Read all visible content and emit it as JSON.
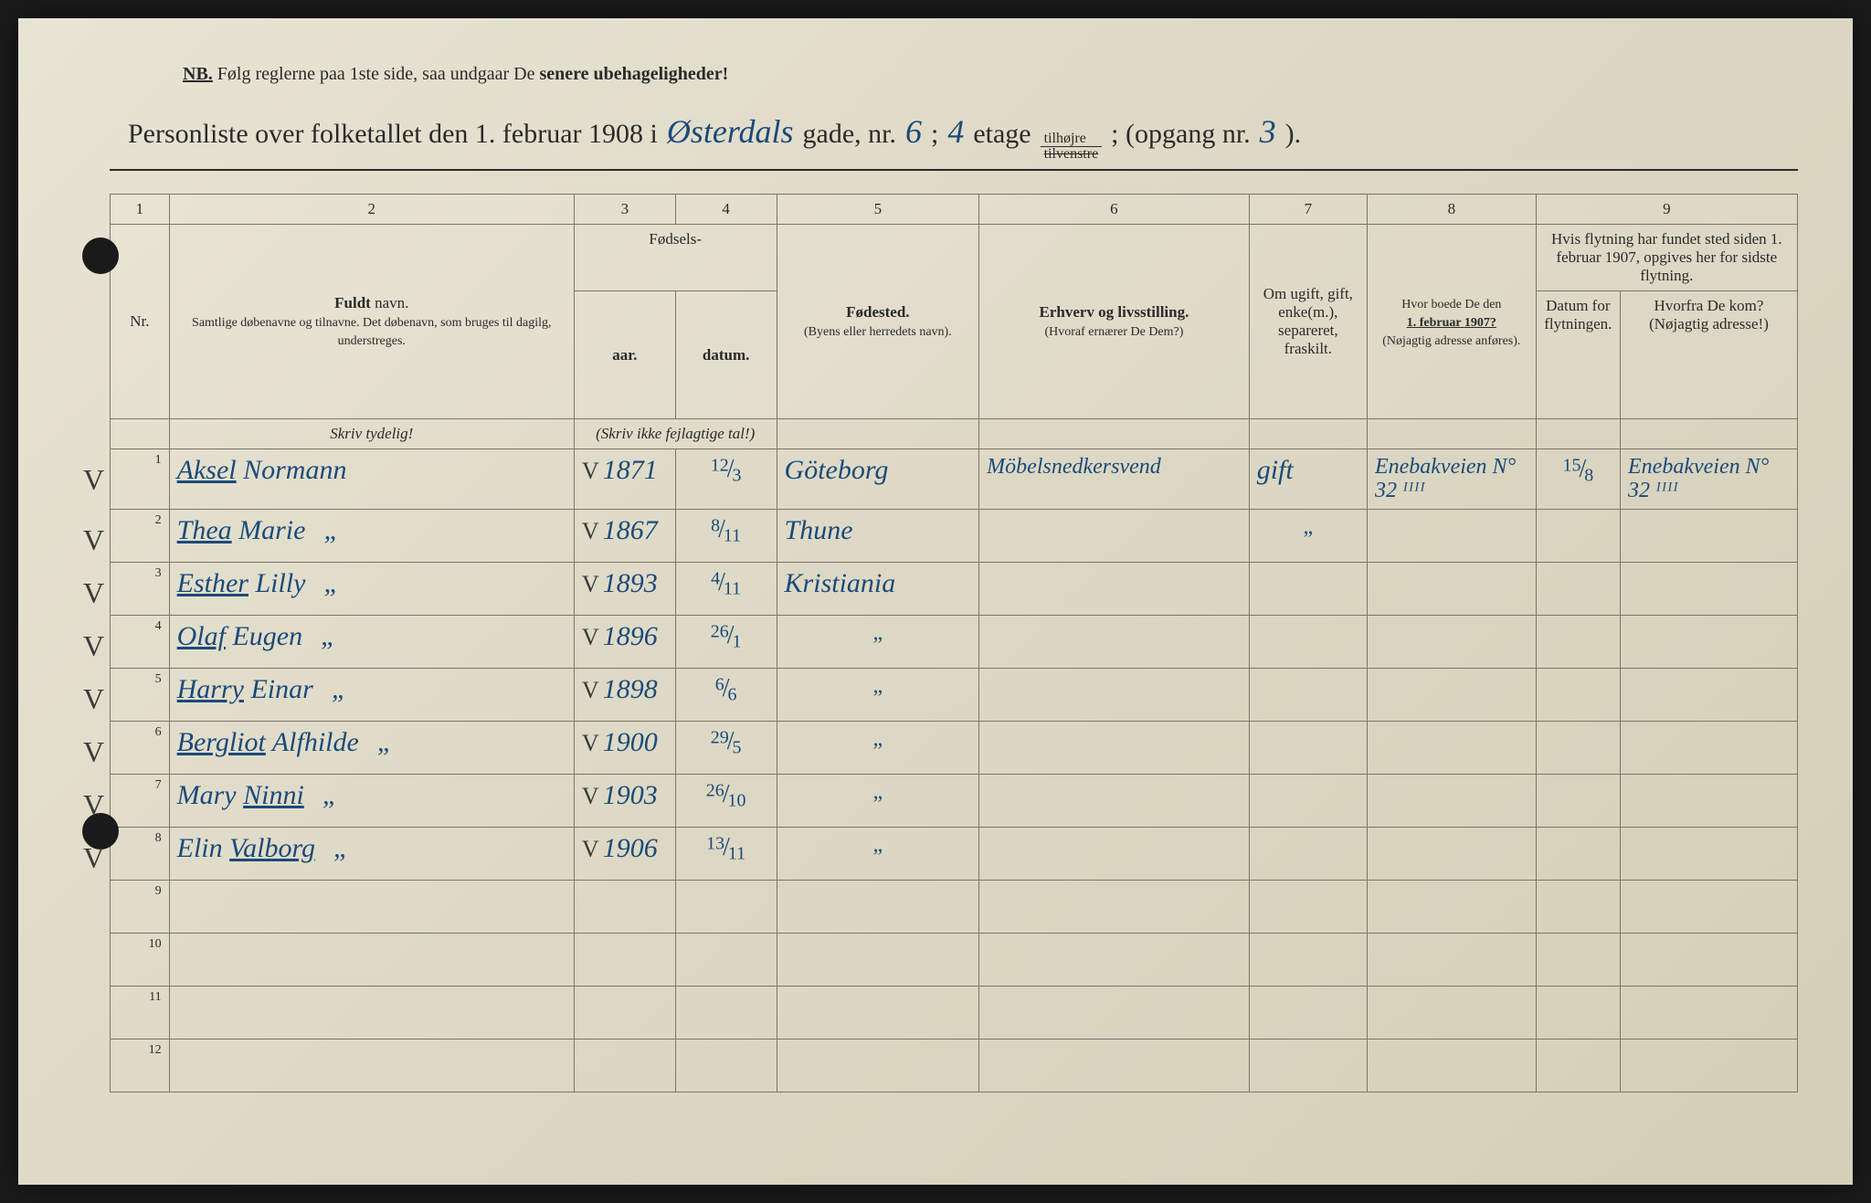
{
  "nb": {
    "prefix": "NB.",
    "text1": "Følg reglerne paa 1ste side, saa undgaar De ",
    "emphasis": "senere ubehageligheder!"
  },
  "title": {
    "t1": "Personliste over folketallet den 1. februar 1908 i",
    "street": "Østerdals",
    "t2": "gade, nr.",
    "nr": "6",
    "semi": ";",
    "floor": "4",
    "t3": "etage",
    "side_top": "tilhøjre",
    "side_bottom": "tilvenstre",
    "t4": "; (opgang nr.",
    "opgang": "3",
    "t5": ")."
  },
  "columns": {
    "nums": [
      "1",
      "2",
      "3",
      "4",
      "5",
      "6",
      "7",
      "8",
      "9"
    ],
    "nr": "Nr.",
    "name_bold": "Fuldt",
    "name_rest": " navn.",
    "name_sub": "Samtlige døbenavne og tilnavne. Det døbenavn, som bruges til dagilg, understreges.",
    "fodsels": "Fødsels-",
    "aar": "aar.",
    "datum": "datum.",
    "skriv_tal": "(Skriv ikke fejlagtige tal!)",
    "fodested": "Fødested.",
    "fodested_sub": "(Byens eller herredets navn).",
    "erhverv": "Erhverv og livsstilling.",
    "erhverv_sub": "(Hvoraf ernærer De Dem?)",
    "ugift": "Om ugift, gift, enke(m.), separeret, fraskilt.",
    "hvor1907": "Hvor boede De den",
    "hvor1907_bold": "1. februar 1907?",
    "hvor1907_sub": "(Nøjagtig adresse anføres).",
    "flyt_top": "Hvis flytning har fundet sted siden 1. februar 1907, opgives her for sidste flytning.",
    "flyt_datum": "Datum for flytningen.",
    "flyt_hvorfra1": "Hvorfra",
    "flyt_hvorfra2": " De kom?",
    "flyt_hvorfra_sub": "(Nøjagtig adresse!)",
    "skriv_tydelig": "Skriv tydelig!"
  },
  "rows": [
    {
      "nr": "1",
      "check": "V",
      "name": "Aksel Normann",
      "name_underlined": "Aksel",
      "year": "1871",
      "year_check": "V",
      "date_num": "12",
      "date_den": "3",
      "birthplace": "Göteborg",
      "occupation": "Möbelsnedkersvend",
      "marital": "gift",
      "addr1907": "Enebakveien N° 32 ᴵᴵᴵᴵ",
      "move_date_num": "15",
      "move_date_den": "8",
      "move_from": "Enebakveien N° 32 ᴵᴵᴵᴵ"
    },
    {
      "nr": "2",
      "check": "V",
      "name": "Thea Marie",
      "name_underlined": "Thea",
      "ditto_name": "„",
      "year": "1867",
      "year_check": "V",
      "date_num": "8",
      "date_den": "11",
      "birthplace": "Thune",
      "occupation": "",
      "marital": "„",
      "addr1907": "",
      "move_date": "",
      "move_from": ""
    },
    {
      "nr": "3",
      "check": "V",
      "name": "Esther Lilly",
      "name_underlined": "Esther",
      "ditto_name": "„",
      "year": "1893",
      "year_check": "V",
      "date_num": "4",
      "date_den": "11",
      "birthplace": "Kristiania",
      "occupation": "",
      "marital": "",
      "addr1907": "",
      "move_date": "",
      "move_from": ""
    },
    {
      "nr": "4",
      "check": "V",
      "name": "Olaf Eugen",
      "name_underlined": "Olaf",
      "ditto_name": "„",
      "year": "1896",
      "year_check": "V",
      "date_num": "26",
      "date_den": "1",
      "birthplace": "„",
      "occupation": "",
      "marital": "",
      "addr1907": "",
      "move_date": "",
      "move_from": ""
    },
    {
      "nr": "5",
      "check": "V",
      "name": "Harry Einar",
      "name_underlined": "Harry",
      "ditto_name": "„",
      "year": "1898",
      "year_check": "V",
      "date_num": "6",
      "date_den": "6",
      "birthplace": "„",
      "occupation": "",
      "marital": "",
      "addr1907": "",
      "move_date": "",
      "move_from": ""
    },
    {
      "nr": "6",
      "check": "V",
      "name": "Bergliot Alfhilde",
      "name_underlined": "Bergliot",
      "ditto_name": "„",
      "year": "1900",
      "year_check": "V",
      "date_num": "29",
      "date_den": "5",
      "birthplace": "„",
      "occupation": "",
      "marital": "",
      "addr1907": "",
      "move_date": "",
      "move_from": ""
    },
    {
      "nr": "7",
      "check": "V",
      "name": "Mary Ninni",
      "name_underlined": "Ninni",
      "name_prefix": "Mary ",
      "ditto_name": "„",
      "year": "1903",
      "year_check": "V",
      "date_num": "26",
      "date_den": "10",
      "birthplace": "„",
      "occupation": "",
      "marital": "",
      "addr1907": "",
      "move_date": "",
      "move_from": ""
    },
    {
      "nr": "8",
      "check": "V",
      "name": "Elin Valborg",
      "name_underlined": "Valborg",
      "name_prefix": "Elin ",
      "ditto_name": "„",
      "year": "1906",
      "year_check": "V",
      "date_num": "13",
      "date_den": "11",
      "birthplace": "„",
      "occupation": "",
      "marital": "",
      "addr1907": "",
      "move_date": "",
      "move_from": ""
    },
    {
      "nr": "9",
      "empty": true
    },
    {
      "nr": "10",
      "empty": true
    },
    {
      "nr": "11",
      "empty": true
    },
    {
      "nr": "12",
      "empty": true
    }
  ],
  "colors": {
    "paper": "#e0dbc8",
    "ink_print": "#2a2a2a",
    "ink_hand": "#1a4a7a",
    "rule": "#7a7668"
  },
  "col_widths_pct": [
    3.5,
    24,
    6,
    6,
    12,
    16,
    7,
    10,
    5,
    10.5
  ]
}
